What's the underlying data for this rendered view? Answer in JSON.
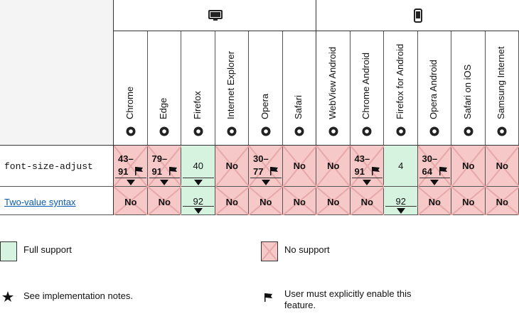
{
  "desktop_browsers": [
    "Chrome",
    "Edge",
    "Firefox",
    "Internet Explorer",
    "Opera",
    "Safari"
  ],
  "mobile_browsers": [
    "WebView Android",
    "Chrome Android",
    "Firefox for Android",
    "Opera Android",
    "Safari on iOS",
    "Samsung Internet"
  ],
  "rows": [
    {
      "feature": "font-size-adjust",
      "style": "code",
      "cells": [
        {
          "lines": [
            "43–",
            "91"
          ],
          "support": "no",
          "flag": true,
          "toggle": true
        },
        {
          "lines": [
            "79–",
            "91"
          ],
          "support": "no",
          "flag": true,
          "toggle": true
        },
        {
          "lines": [
            "40"
          ],
          "support": "full",
          "toggle": true
        },
        {
          "lines": [
            "No"
          ],
          "support": "no"
        },
        {
          "lines": [
            "30–",
            "77"
          ],
          "support": "no",
          "flag": true,
          "toggle": true
        },
        {
          "lines": [
            "No"
          ],
          "support": "no"
        },
        {
          "lines": [
            "No"
          ],
          "support": "no"
        },
        {
          "lines": [
            "43–",
            "91"
          ],
          "support": "no",
          "flag": true,
          "toggle": true
        },
        {
          "lines": [
            "4"
          ],
          "support": "full"
        },
        {
          "lines": [
            "30–",
            "64"
          ],
          "support": "no",
          "flag": true,
          "toggle": true
        },
        {
          "lines": [
            "No"
          ],
          "support": "no"
        },
        {
          "lines": [
            "No"
          ],
          "support": "no"
        }
      ]
    },
    {
      "feature": "Two-value syntax",
      "style": "link",
      "cells": [
        {
          "lines": [
            "No"
          ],
          "support": "no"
        },
        {
          "lines": [
            "No"
          ],
          "support": "no"
        },
        {
          "lines": [
            "92"
          ],
          "support": "full",
          "toggle": true
        },
        {
          "lines": [
            "No"
          ],
          "support": "no"
        },
        {
          "lines": [
            "No"
          ],
          "support": "no"
        },
        {
          "lines": [
            "No"
          ],
          "support": "no"
        },
        {
          "lines": [
            "No"
          ],
          "support": "no"
        },
        {
          "lines": [
            "No"
          ],
          "support": "no"
        },
        {
          "lines": [
            "92"
          ],
          "support": "full",
          "toggle": true
        },
        {
          "lines": [
            "No"
          ],
          "support": "no"
        },
        {
          "lines": [
            "No"
          ],
          "support": "no"
        },
        {
          "lines": [
            "No"
          ],
          "support": "no"
        }
      ]
    }
  ],
  "legend": {
    "full": "Full support",
    "no": "No support",
    "notes": "See implementation notes.",
    "flag": "User must explicitly enable this feature."
  }
}
